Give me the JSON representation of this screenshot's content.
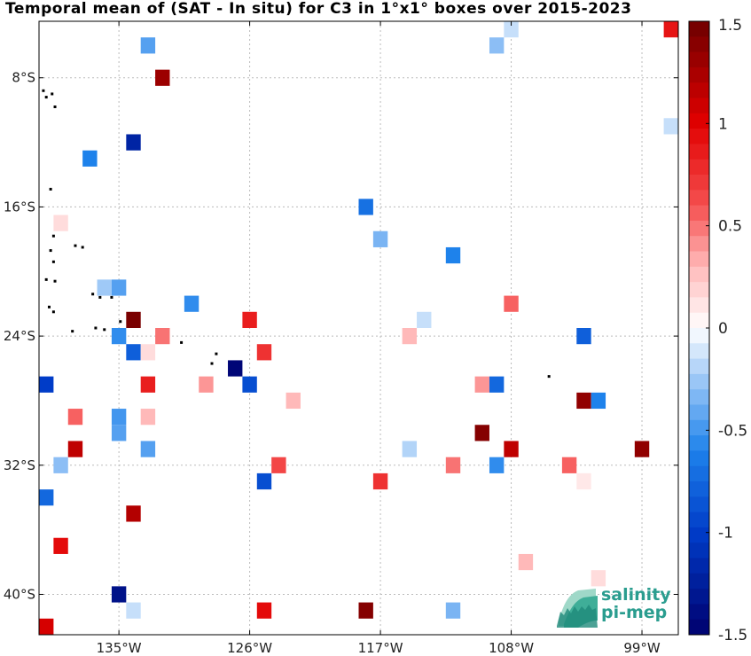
{
  "chart_data": {
    "type": "heatmap",
    "title": "Temporal mean of (SAT - In situ) for C3 in 1°x1° boxes over 2015-2023",
    "xlim": [
      -140.5,
      -96.5
    ],
    "ylim": [
      -42.5,
      -4.5
    ],
    "x_ticks": [
      {
        "value": -135,
        "label": "135°W"
      },
      {
        "value": -126,
        "label": "126°W"
      },
      {
        "value": -117,
        "label": "117°W"
      },
      {
        "value": -108,
        "label": "108°W"
      },
      {
        "value": -99,
        "label": "99°W"
      }
    ],
    "y_ticks": [
      {
        "value": -8,
        "label": "8°S"
      },
      {
        "value": -16,
        "label": "16°S"
      },
      {
        "value": -24,
        "label": "24°S"
      },
      {
        "value": -32,
        "label": "32°S"
      },
      {
        "value": -40,
        "label": "40°S"
      }
    ],
    "grid": true,
    "colorbar": {
      "min": -1.5,
      "max": 1.5,
      "steps": 40,
      "ticks": [
        {
          "value": 1.5,
          "label": "1.5"
        },
        {
          "value": 1,
          "label": "1"
        },
        {
          "value": 0.5,
          "label": "0.5"
        },
        {
          "value": 0,
          "label": "0"
        },
        {
          "value": -0.5,
          "label": "-0.5"
        },
        {
          "value": -1,
          "label": "-1"
        },
        {
          "value": -1.5,
          "label": "-1.5"
        }
      ]
    },
    "cells": [
      {
        "lon": -133,
        "lat": -6,
        "value": -0.45
      },
      {
        "lon": -132,
        "lat": -8,
        "value": 1.3
      },
      {
        "lon": -134,
        "lat": -12,
        "value": -1.2
      },
      {
        "lon": -137,
        "lat": -13,
        "value": -0.6
      },
      {
        "lon": -139,
        "lat": -17,
        "value": 0.15
      },
      {
        "lon": -136,
        "lat": -21,
        "value": -0.25
      },
      {
        "lon": -135,
        "lat": -21,
        "value": -0.45
      },
      {
        "lon": -130,
        "lat": -22,
        "value": -0.55
      },
      {
        "lon": -134,
        "lat": -23,
        "value": 1.45
      },
      {
        "lon": -126,
        "lat": -23,
        "value": 0.85
      },
      {
        "lon": -135,
        "lat": -24,
        "value": -0.55
      },
      {
        "lon": -132,
        "lat": -24,
        "value": 0.5
      },
      {
        "lon": -134,
        "lat": -25,
        "value": -0.8
      },
      {
        "lon": -133,
        "lat": -25,
        "value": 0.15
      },
      {
        "lon": -125,
        "lat": -25,
        "value": 0.75
      },
      {
        "lon": -127,
        "lat": -26,
        "value": -1.45
      },
      {
        "lon": -140,
        "lat": -27,
        "value": -1.0
      },
      {
        "lon": -133,
        "lat": -27,
        "value": 0.85
      },
      {
        "lon": -129,
        "lat": -27,
        "value": 0.4
      },
      {
        "lon": -126,
        "lat": -27,
        "value": -0.9
      },
      {
        "lon": -123,
        "lat": -28,
        "value": 0.3
      },
      {
        "lon": -138,
        "lat": -29,
        "value": 0.55
      },
      {
        "lon": -135,
        "lat": -29,
        "value": -0.5
      },
      {
        "lon": -133,
        "lat": -29,
        "value": 0.3
      },
      {
        "lon": -135,
        "lat": -30,
        "value": -0.45
      },
      {
        "lon": -138,
        "lat": -31,
        "value": 1.15
      },
      {
        "lon": -133,
        "lat": -31,
        "value": -0.45
      },
      {
        "lon": -139,
        "lat": -32,
        "value": -0.3
      },
      {
        "lon": -124,
        "lat": -32,
        "value": 0.65
      },
      {
        "lon": -125,
        "lat": -33,
        "value": -0.9
      },
      {
        "lon": -140,
        "lat": -34,
        "value": -0.75
      },
      {
        "lon": -134,
        "lat": -35,
        "value": 1.2
      },
      {
        "lon": -139,
        "lat": -37,
        "value": 0.95
      },
      {
        "lon": -135,
        "lat": -40,
        "value": -1.35
      },
      {
        "lon": -134,
        "lat": -41,
        "value": -0.15
      },
      {
        "lon": -125,
        "lat": -41,
        "value": 0.95
      },
      {
        "lon": -140,
        "lat": -42,
        "value": 1.05
      },
      {
        "lon": -118,
        "lat": -16,
        "value": -0.7
      },
      {
        "lon": -117,
        "lat": -18,
        "value": -0.35
      },
      {
        "lon": -117,
        "lat": -33,
        "value": 0.75
      },
      {
        "lon": -118,
        "lat": -41,
        "value": 1.4
      },
      {
        "lon": -114,
        "lat": -23,
        "value": -0.15
      },
      {
        "lon": -115,
        "lat": -24,
        "value": 0.3
      },
      {
        "lon": -115,
        "lat": -31,
        "value": -0.2
      },
      {
        "lon": -112,
        "lat": -19,
        "value": -0.6
      },
      {
        "lon": -112,
        "lat": -32,
        "value": 0.5
      },
      {
        "lon": -112,
        "lat": -41,
        "value": -0.35
      },
      {
        "lon": -110,
        "lat": -27,
        "value": 0.4
      },
      {
        "lon": -109,
        "lat": -27,
        "value": -0.75
      },
      {
        "lon": -110,
        "lat": -30,
        "value": 1.4
      },
      {
        "lon": -109,
        "lat": -32,
        "value": -0.55
      },
      {
        "lon": -109,
        "lat": -6,
        "value": -0.3
      },
      {
        "lon": -108,
        "lat": -5,
        "value": -0.15
      },
      {
        "lon": -108,
        "lat": -22,
        "value": 0.55
      },
      {
        "lon": -108,
        "lat": -31,
        "value": 1.15
      },
      {
        "lon": -107,
        "lat": -38,
        "value": 0.3
      },
      {
        "lon": -104,
        "lat": -32,
        "value": 0.55
      },
      {
        "lon": -103,
        "lat": -24,
        "value": -0.8
      },
      {
        "lon": -103,
        "lat": -28,
        "value": 1.35
      },
      {
        "lon": -103,
        "lat": -33,
        "value": 0.1
      },
      {
        "lon": -102,
        "lat": -28,
        "value": -0.6
      },
      {
        "lon": -102,
        "lat": -39,
        "value": 0.15
      },
      {
        "lon": -99,
        "lat": -31,
        "value": 1.35
      },
      {
        "lon": -97,
        "lat": -5,
        "value": 0.9
      },
      {
        "lon": -97,
        "lat": -11,
        "value": -0.15
      }
    ],
    "islands": [
      {
        "lon": -140.2,
        "lat": -8.8
      },
      {
        "lon": -140.0,
        "lat": -9.2
      },
      {
        "lon": -139.6,
        "lat": -9.0
      },
      {
        "lon": -139.4,
        "lat": -9.8
      },
      {
        "lon": -139.7,
        "lat": -14.9
      },
      {
        "lon": -139.5,
        "lat": -17.8
      },
      {
        "lon": -138.0,
        "lat": -18.4
      },
      {
        "lon": -137.5,
        "lat": -18.5
      },
      {
        "lon": -139.7,
        "lat": -18.7
      },
      {
        "lon": -139.5,
        "lat": -19.4
      },
      {
        "lon": -140.0,
        "lat": -20.5
      },
      {
        "lon": -139.4,
        "lat": -20.6
      },
      {
        "lon": -136.8,
        "lat": -21.4
      },
      {
        "lon": -136.3,
        "lat": -21.6
      },
      {
        "lon": -135.5,
        "lat": -21.6
      },
      {
        "lon": -139.8,
        "lat": -22.2
      },
      {
        "lon": -139.5,
        "lat": -22.5
      },
      {
        "lon": -138.2,
        "lat": -23.7
      },
      {
        "lon": -136.6,
        "lat": -23.5
      },
      {
        "lon": -136.0,
        "lat": -23.6
      },
      {
        "lon": -134.9,
        "lat": -23.1
      },
      {
        "lon": -130.7,
        "lat": -24.4
      },
      {
        "lon": -128.3,
        "lat": -25.1
      },
      {
        "lon": -128.6,
        "lat": -25.7
      },
      {
        "lon": -124.8,
        "lat": -24.7
      },
      {
        "lon": -109.3,
        "lat": -27.1
      },
      {
        "lon": -105.4,
        "lat": -26.5
      }
    ]
  },
  "logo": {
    "line1": "salinity",
    "line2": "pi-mep"
  }
}
